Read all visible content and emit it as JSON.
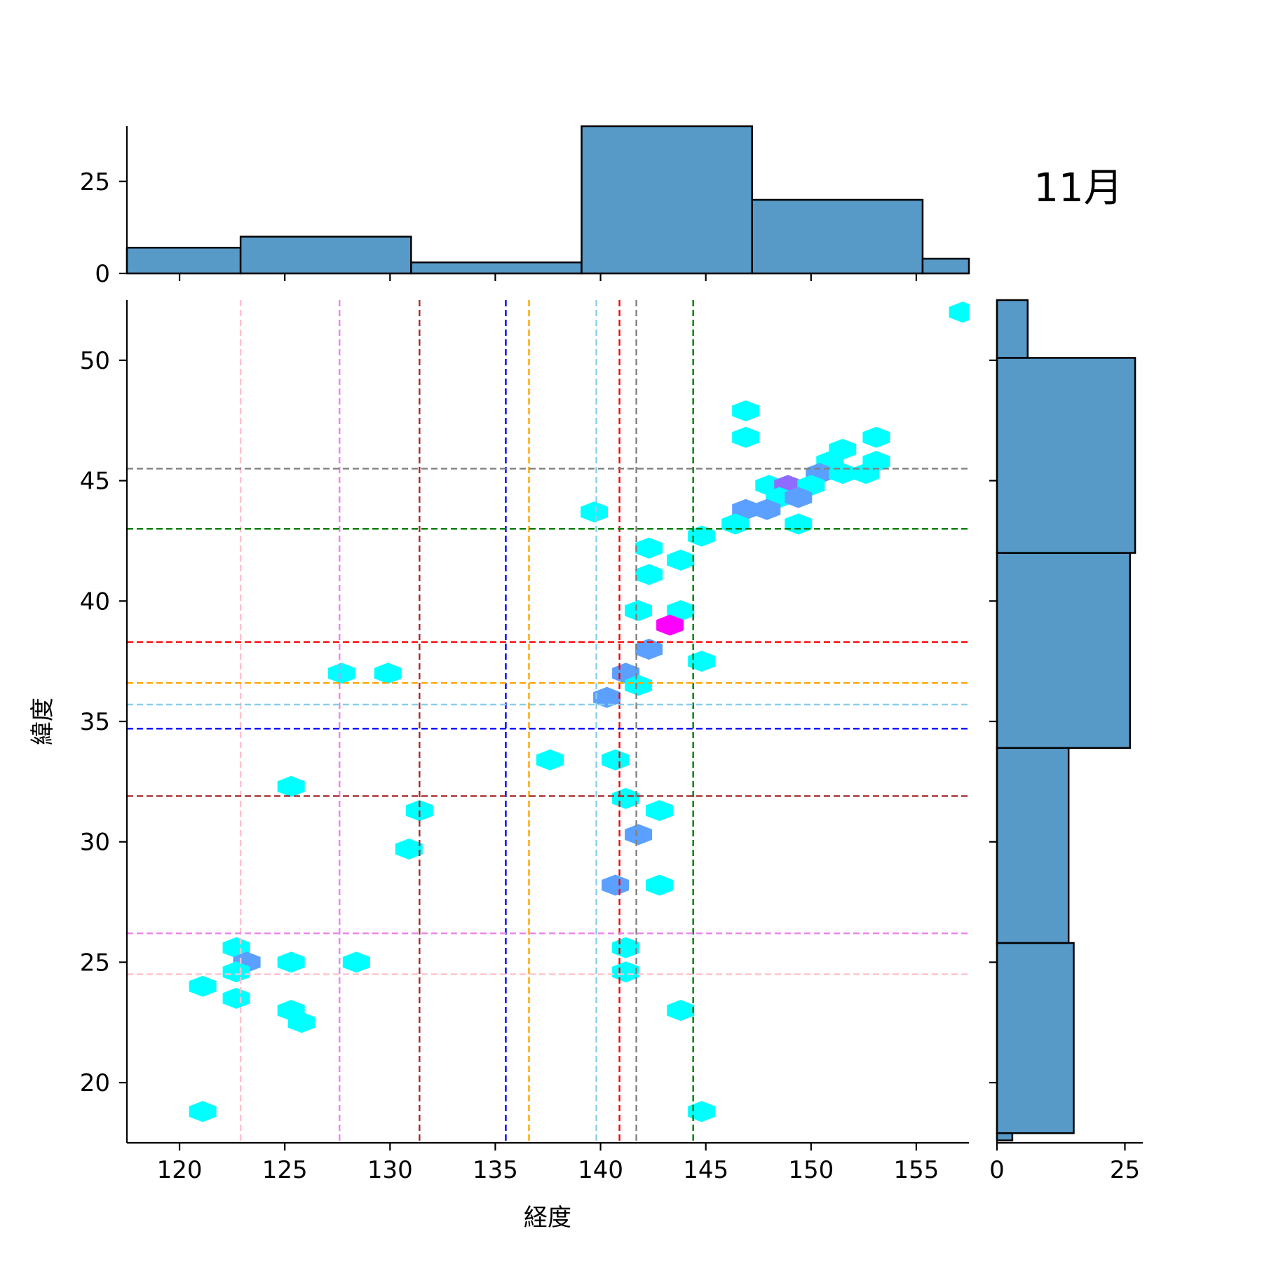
{
  "chart_data": {
    "type": "hexbin",
    "title": "11月",
    "xlabel": "経度",
    "ylabel": "緯度",
    "xlim": [
      117.5,
      157.5
    ],
    "ylim": [
      17.5,
      52.5
    ],
    "xticks": [
      120,
      125,
      130,
      135,
      140,
      145,
      150,
      155
    ],
    "yticks": [
      20,
      25,
      30,
      35,
      40,
      45,
      50
    ],
    "grid": false,
    "top_histogram": {
      "ylim": [
        0,
        40
      ],
      "yticks": [
        0,
        25
      ],
      "bins": [
        {
          "x0": 117.5,
          "x1": 122.9,
          "count": 7
        },
        {
          "x0": 122.9,
          "x1": 131.0,
          "count": 10
        },
        {
          "x0": 131.0,
          "x1": 139.1,
          "count": 3
        },
        {
          "x0": 139.1,
          "x1": 147.2,
          "count": 40
        },
        {
          "x0": 147.2,
          "x1": 155.3,
          "count": 20
        },
        {
          "x0": 155.3,
          "x1": 157.5,
          "count": 4
        }
      ]
    },
    "right_histogram": {
      "xlim": [
        0,
        28.5
      ],
      "xticks": [
        0,
        25
      ],
      "bins": [
        {
          "y0": 17.6,
          "y1": 17.9,
          "count": 3
        },
        {
          "y0": 17.9,
          "y1": 25.8,
          "count": 15
        },
        {
          "y0": 25.8,
          "y1": 33.9,
          "count": 14
        },
        {
          "y0": 33.9,
          "y1": 42.0,
          "count": 26
        },
        {
          "y0": 42.0,
          "y1": 50.1,
          "count": 27
        },
        {
          "y0": 50.1,
          "y1": 52.5,
          "count": 6
        }
      ]
    },
    "vertical_lines": [
      {
        "x": 122.9,
        "color": "#ffc0cb"
      },
      {
        "x": 127.6,
        "color": "#ee82ee"
      },
      {
        "x": 131.4,
        "color": "#a52a2a"
      },
      {
        "x": 135.5,
        "color": "#0000ff"
      },
      {
        "x": 136.6,
        "color": "#ffa500"
      },
      {
        "x": 139.8,
        "color": "#87ceeb"
      },
      {
        "x": 140.9,
        "color": "#ff0000"
      },
      {
        "x": 141.7,
        "color": "#808080"
      },
      {
        "x": 144.4,
        "color": "#008000"
      }
    ],
    "horizontal_lines": [
      {
        "y": 45.5,
        "color": "#808080"
      },
      {
        "y": 43.0,
        "color": "#008000"
      },
      {
        "y": 38.3,
        "color": "#ff0000"
      },
      {
        "y": 36.6,
        "color": "#ffa500"
      },
      {
        "y": 35.7,
        "color": "#87ceeb"
      },
      {
        "y": 34.7,
        "color": "#0000ff"
      },
      {
        "y": 31.9,
        "color": "#a52a2a"
      },
      {
        "y": 26.2,
        "color": "#ee82ee"
      },
      {
        "y": 24.5,
        "color": "#ffc0cb"
      }
    ],
    "hexbins": [
      {
        "x": 157.2,
        "y": 52.0,
        "color": "#00ffff"
      },
      {
        "x": 146.9,
        "y": 47.9,
        "color": "#00ffff"
      },
      {
        "x": 146.9,
        "y": 46.8,
        "color": "#00ffff"
      },
      {
        "x": 153.1,
        "y": 46.8,
        "color": "#00ffff"
      },
      {
        "x": 151.5,
        "y": 46.3,
        "color": "#00ffff"
      },
      {
        "x": 150.9,
        "y": 45.8,
        "color": "#00ffff"
      },
      {
        "x": 153.1,
        "y": 45.8,
        "color": "#00ffff"
      },
      {
        "x": 150.4,
        "y": 45.3,
        "color": "#5ca0ff"
      },
      {
        "x": 151.5,
        "y": 45.3,
        "color": "#00ffff"
      },
      {
        "x": 152.6,
        "y": 45.3,
        "color": "#00ffff"
      },
      {
        "x": 148.0,
        "y": 44.8,
        "color": "#00ffff"
      },
      {
        "x": 148.9,
        "y": 44.8,
        "color": "#8f6cff"
      },
      {
        "x": 150.0,
        "y": 44.8,
        "color": "#00ffff"
      },
      {
        "x": 148.5,
        "y": 44.3,
        "color": "#00ffff"
      },
      {
        "x": 149.4,
        "y": 44.3,
        "color": "#5ca0ff"
      },
      {
        "x": 146.9,
        "y": 43.8,
        "color": "#5ca0ff"
      },
      {
        "x": 147.9,
        "y": 43.8,
        "color": "#5ca0ff"
      },
      {
        "x": 139.7,
        "y": 43.7,
        "color": "#00ffff"
      },
      {
        "x": 146.4,
        "y": 43.2,
        "color": "#00ffff"
      },
      {
        "x": 149.4,
        "y": 43.2,
        "color": "#00ffff"
      },
      {
        "x": 144.8,
        "y": 42.7,
        "color": "#00ffff"
      },
      {
        "x": 142.3,
        "y": 42.2,
        "color": "#00ffff"
      },
      {
        "x": 143.8,
        "y": 41.7,
        "color": "#00ffff"
      },
      {
        "x": 142.3,
        "y": 41.1,
        "color": "#00ffff"
      },
      {
        "x": 141.8,
        "y": 39.6,
        "color": "#00ffff"
      },
      {
        "x": 143.8,
        "y": 39.6,
        "color": "#00ffff"
      },
      {
        "x": 143.3,
        "y": 39.0,
        "color": "#ff00ff"
      },
      {
        "x": 142.3,
        "y": 38.0,
        "color": "#5ca0ff"
      },
      {
        "x": 144.8,
        "y": 37.5,
        "color": "#00ffff"
      },
      {
        "x": 127.7,
        "y": 37.0,
        "color": "#00ffff"
      },
      {
        "x": 129.9,
        "y": 37.0,
        "color": "#00ffff"
      },
      {
        "x": 141.2,
        "y": 37.0,
        "color": "#5ca0ff"
      },
      {
        "x": 141.8,
        "y": 36.5,
        "color": "#00ffff"
      },
      {
        "x": 140.3,
        "y": 36.0,
        "color": "#5ca0ff"
      },
      {
        "x": 137.6,
        "y": 33.4,
        "color": "#00ffff"
      },
      {
        "x": 140.7,
        "y": 33.4,
        "color": "#00ffff"
      },
      {
        "x": 125.3,
        "y": 32.3,
        "color": "#00ffff"
      },
      {
        "x": 141.2,
        "y": 31.8,
        "color": "#00ffff"
      },
      {
        "x": 131.4,
        "y": 31.3,
        "color": "#00ffff"
      },
      {
        "x": 142.8,
        "y": 31.3,
        "color": "#00ffff"
      },
      {
        "x": 141.8,
        "y": 30.3,
        "color": "#5ca0ff"
      },
      {
        "x": 130.9,
        "y": 29.7,
        "color": "#00ffff"
      },
      {
        "x": 140.7,
        "y": 28.2,
        "color": "#5ca0ff"
      },
      {
        "x": 142.8,
        "y": 28.2,
        "color": "#00ffff"
      },
      {
        "x": 122.7,
        "y": 25.6,
        "color": "#00ffff"
      },
      {
        "x": 141.2,
        "y": 25.6,
        "color": "#00ffff"
      },
      {
        "x": 123.2,
        "y": 25.0,
        "color": "#5ca0ff"
      },
      {
        "x": 125.3,
        "y": 25.0,
        "color": "#00ffff"
      },
      {
        "x": 128.4,
        "y": 25.0,
        "color": "#00ffff"
      },
      {
        "x": 122.7,
        "y": 24.6,
        "color": "#00ffff"
      },
      {
        "x": 141.2,
        "y": 24.6,
        "color": "#00ffff"
      },
      {
        "x": 121.1,
        "y": 24.0,
        "color": "#00ffff"
      },
      {
        "x": 122.7,
        "y": 23.5,
        "color": "#00ffff"
      },
      {
        "x": 125.3,
        "y": 23.0,
        "color": "#00ffff"
      },
      {
        "x": 143.8,
        "y": 23.0,
        "color": "#00ffff"
      },
      {
        "x": 125.8,
        "y": 22.5,
        "color": "#00ffff"
      },
      {
        "x": 121.1,
        "y": 18.8,
        "color": "#00ffff"
      },
      {
        "x": 144.8,
        "y": 18.8,
        "color": "#00ffff"
      }
    ]
  }
}
